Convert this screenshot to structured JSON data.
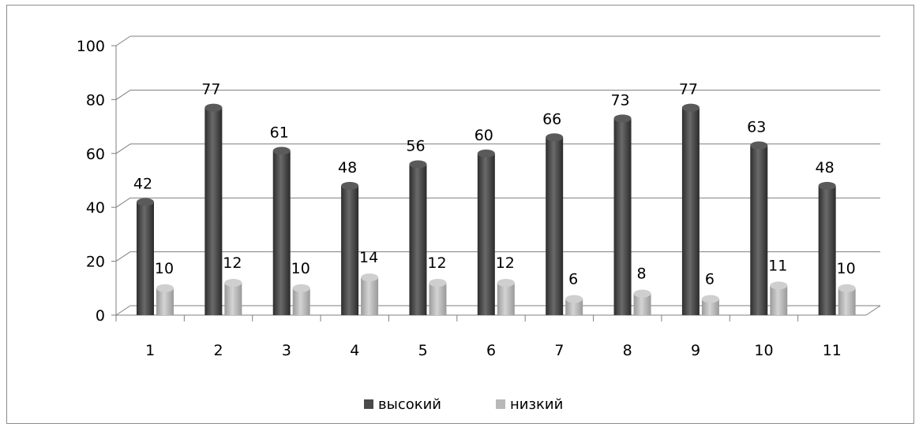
{
  "chart_data": {
    "type": "bar",
    "categories": [
      "1",
      "2",
      "3",
      "4",
      "5",
      "6",
      "7",
      "8",
      "9",
      "10",
      "11"
    ],
    "series": [
      {
        "name": "высокий",
        "values": [
          42,
          77,
          61,
          48,
          56,
          60,
          66,
          73,
          77,
          63,
          48
        ]
      },
      {
        "name": "низкий",
        "values": [
          10,
          12,
          10,
          14,
          12,
          12,
          6,
          8,
          6,
          11,
          10
        ]
      }
    ],
    "yticks": [
      "0",
      "20",
      "40",
      "60",
      "80",
      "100"
    ],
    "ylim": [
      0,
      100
    ],
    "grid": true,
    "legend_position": "bottom",
    "colors": {
      "высокий": "#4a4a4a",
      "низкий": "#b8b8b8"
    }
  }
}
